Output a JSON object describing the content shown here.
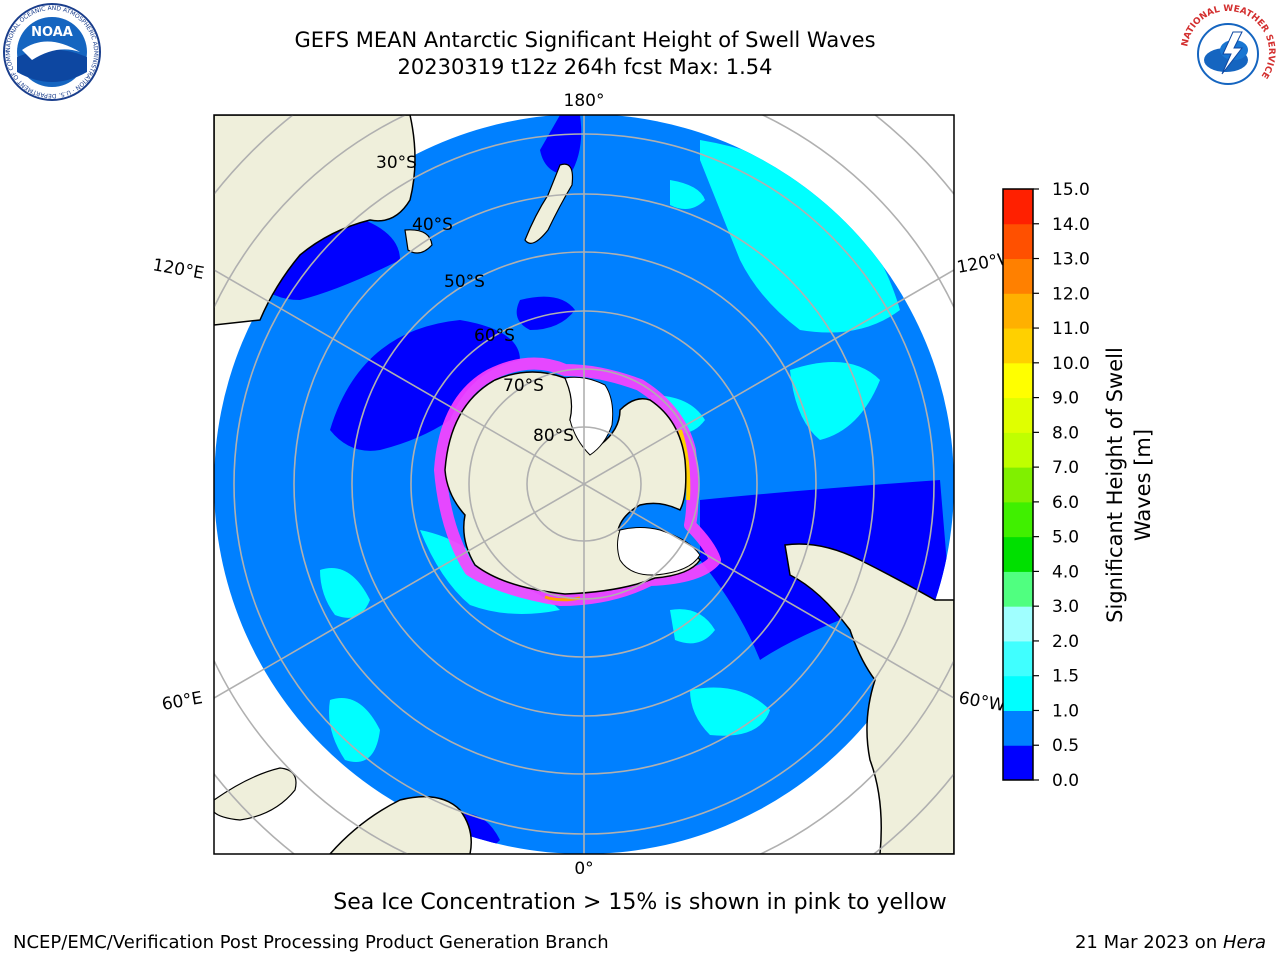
{
  "header": {
    "title_line1": "GEFS MEAN Antarctic Significant Height of Swell Waves",
    "title_line2": "20230319 t12z 264h fcst   Max: 1.54"
  },
  "logos": {
    "left_text": "NOAA",
    "left_ring_text": "NATIONAL OCEANIC AND ATMOSPHERIC ADMINISTRATION · U.S. DEPARTMENT OF COMMERCE",
    "right_ring_text": "NATIONAL WEATHER SERVICE"
  },
  "map": {
    "meridian_labels": {
      "top": "180°",
      "bottom": "0°",
      "upper_left": "120°E",
      "upper_right": "120°W",
      "lower_left": "60°E",
      "lower_right": "60°W"
    },
    "latitude_labels": [
      "30°S",
      "40°S",
      "50°S",
      "60°S",
      "70°S",
      "80°S"
    ]
  },
  "colorbar": {
    "label_line1": "Significant Height of Swell",
    "label_line2": "Waves [m]",
    "ticks": [
      "0.0",
      "0.5",
      "1.0",
      "1.5",
      "2.0",
      "3.0",
      "4.0",
      "5.0",
      "6.0",
      "7.0",
      "8.0",
      "9.0",
      "10.0",
      "11.0",
      "12.0",
      "13.0",
      "14.0",
      "15.0"
    ],
    "colors": [
      "#0000ff",
      "#0080ff",
      "#00ffff",
      "#40ffff",
      "#a0ffff",
      "#50ff80",
      "#00e000",
      "#40f000",
      "#80f000",
      "#c0ff00",
      "#e0ff00",
      "#ffff00",
      "#ffd000",
      "#ffb000",
      "#ff8000",
      "#ff5000",
      "#ff2000"
    ]
  },
  "footer": {
    "caption": "Sea Ice Concentration > 15% is shown in pink to yellow",
    "left": "NCEP/EMC/Verification Post Processing Product Generation Branch",
    "right_prefix": "21 Mar 2023 on ",
    "right_host": "Hera"
  }
}
